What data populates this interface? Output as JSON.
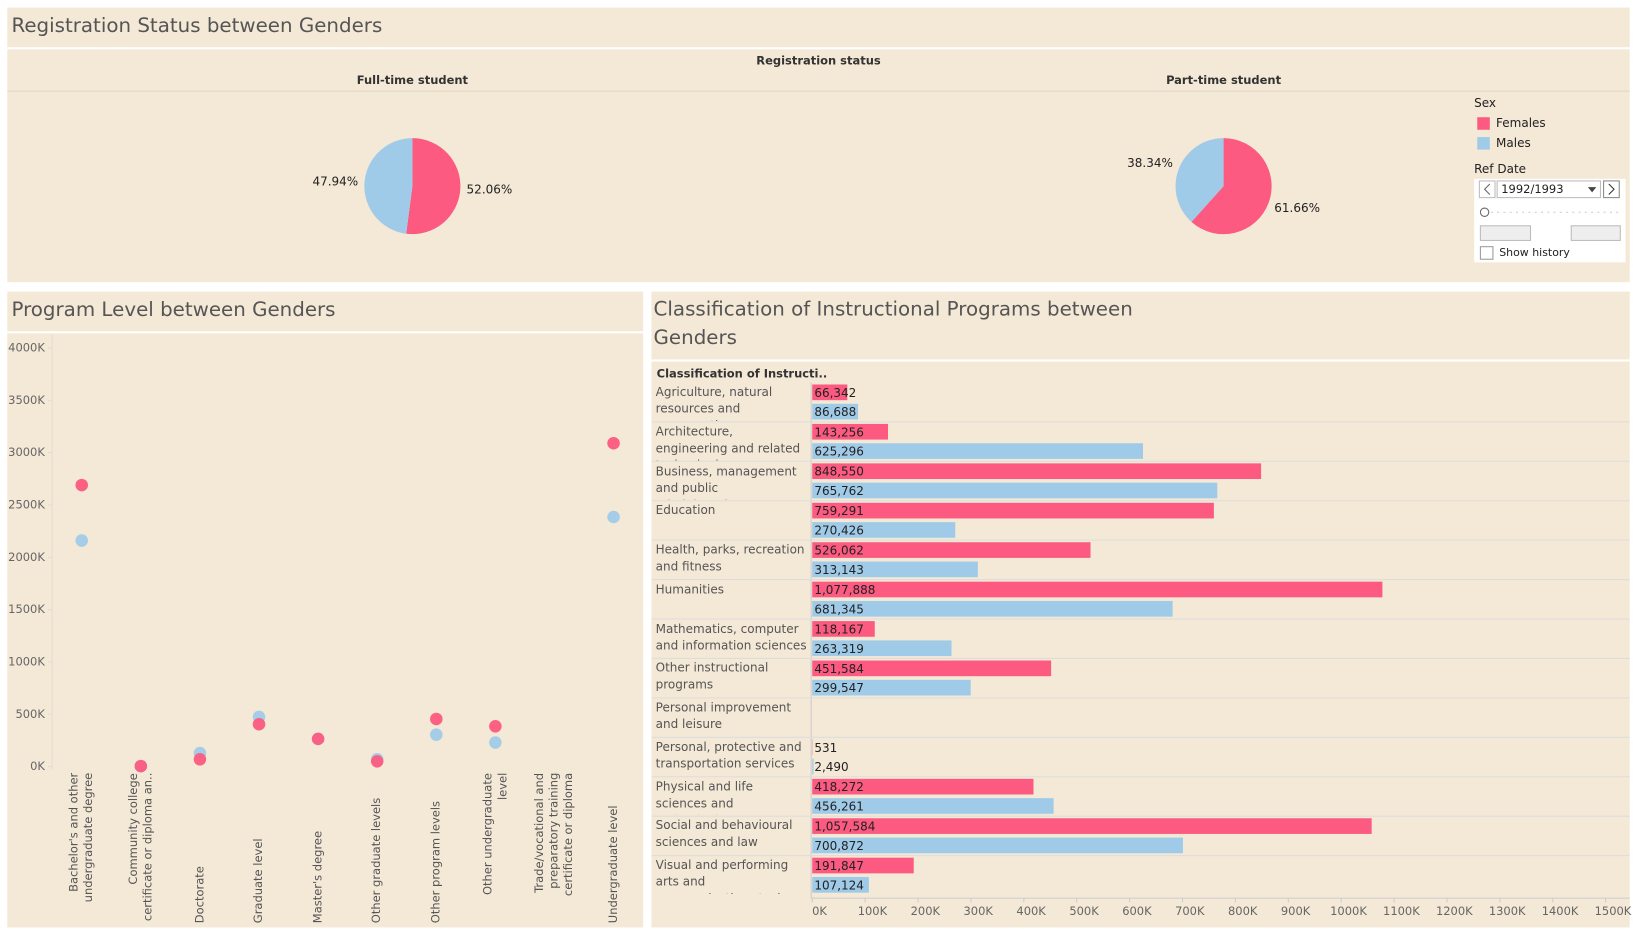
{
  "chart_data": [
    {
      "type": "pie",
      "title": "Registration Status between Genders",
      "column_header": "Registration status",
      "categories": [
        "Females",
        "Males"
      ],
      "colors": [
        "#fc5a80",
        "#a0cbe8"
      ],
      "legend_title": "Sex",
      "pies": [
        {
          "name": "Full-time student",
          "values": [
            52.06,
            47.94
          ],
          "value_labels": [
            "52.06%",
            "47.94%"
          ]
        },
        {
          "name": "Part-time student",
          "values": [
            61.66,
            38.34
          ],
          "value_labels": [
            "61.66%",
            "38.34%"
          ]
        }
      ],
      "filter": {
        "title": "Ref Date",
        "value": "1992/1993",
        "option": "Show history"
      }
    },
    {
      "type": "scatter",
      "title": "Program Level between Genders",
      "categories": [
        "Bachelor's and other undergraduate degree",
        "Community college certificate or diploma an..",
        "Doctorate",
        "Graduate level",
        "Master's degree",
        "Other graduate levels",
        "Other program levels",
        "Other undergraduate level",
        "Trade/vocational and preparatory training certificate or diploma",
        "Undergraduate level"
      ],
      "series": [
        {
          "color": "#fc5a80",
          "values": [
            2690000,
            5000,
            70000,
            405000,
            265000,
            50000,
            455000,
            385000,
            null,
            3090000
          ]
        },
        {
          "color": "#a0cbe8",
          "values": [
            2160000,
            5000,
            130000,
            475000,
            265000,
            70000,
            305000,
            230000,
            null,
            2385000
          ]
        }
      ],
      "ylim": [
        -30000,
        4130000
      ],
      "yticks": [
        {
          "value": 0,
          "label": "0K"
        },
        {
          "value": 500000,
          "label": "500K"
        },
        {
          "value": 1000000,
          "label": "1000K"
        },
        {
          "value": 1500000,
          "label": "1500K"
        },
        {
          "value": 2000000,
          "label": "2000K"
        },
        {
          "value": 2500000,
          "label": "2500K"
        },
        {
          "value": 3000000,
          "label": "3000K"
        },
        {
          "value": 3500000,
          "label": "3500K"
        },
        {
          "value": 4000000,
          "label": "4000K"
        }
      ]
    },
    {
      "type": "bar",
      "title": "Classification of Instructional Programs between Genders",
      "column_header": "Classification of Instructi..",
      "categories": [
        "Agriculture, natural resources and conservati..",
        "Architecture, engineering and related technologies",
        "Business, management and public administration",
        "Education",
        "Health, parks, recreation and fitness",
        "Humanities",
        "Mathematics, computer and information sciences",
        "Other instructional programs",
        "Personal improvement and leisure",
        "Personal, protective and transportation services",
        "Physical and life sciences and technologies",
        "Social and behavioural sciences and law",
        "Visual and performing arts and communications tech.."
      ],
      "series": [
        {
          "color": "#fc5a80",
          "values": [
            66342,
            143256,
            848550,
            759291,
            526062,
            1077888,
            118167,
            451584,
            null,
            531,
            418272,
            1057584,
            191847
          ],
          "value_labels": [
            "66,342",
            "143,256",
            "848,550",
            "759,291",
            "526,062",
            "1,077,888",
            "118,167",
            "451,584",
            null,
            "531",
            "418,272",
            "1,057,584",
            "191,847"
          ]
        },
        {
          "color": "#a0cbe8",
          "values": [
            86688,
            625296,
            765762,
            270426,
            313143,
            681345,
            263319,
            299547,
            null,
            2490,
            456261,
            700872,
            107124
          ],
          "value_labels": [
            "86,688",
            "625,296",
            "765,762",
            "270,426",
            "313,143",
            "681,345",
            "263,319",
            "299,547",
            null,
            "2,490",
            "456,261",
            "700,872",
            "107,124"
          ]
        }
      ],
      "xlim": [
        0,
        1540000
      ],
      "xticks": [
        {
          "value": 0,
          "label": "0K"
        },
        {
          "value": 100000,
          "label": "100K"
        },
        {
          "value": 200000,
          "label": "200K"
        },
        {
          "value": 300000,
          "label": "300K"
        },
        {
          "value": 400000,
          "label": "400K"
        },
        {
          "value": 500000,
          "label": "500K"
        },
        {
          "value": 600000,
          "label": "600K"
        },
        {
          "value": 700000,
          "label": "700K"
        },
        {
          "value": 800000,
          "label": "800K"
        },
        {
          "value": 900000,
          "label": "900K"
        },
        {
          "value": 1000000,
          "label": "1000K"
        },
        {
          "value": 1100000,
          "label": "1100K"
        },
        {
          "value": 1200000,
          "label": "1200K"
        },
        {
          "value": 1300000,
          "label": "1300K"
        },
        {
          "value": 1400000,
          "label": "1400K"
        },
        {
          "value": 1500000,
          "label": "1500K"
        }
      ]
    }
  ]
}
